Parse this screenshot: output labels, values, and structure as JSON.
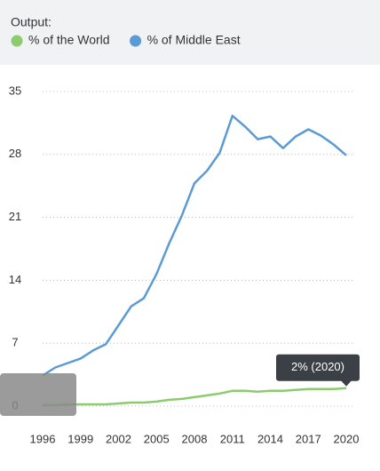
{
  "chart_data": {
    "type": "line",
    "title": "Output:",
    "x": [
      1996,
      1997,
      1998,
      1999,
      2000,
      2001,
      2002,
      2003,
      2004,
      2005,
      2006,
      2007,
      2008,
      2009,
      2010,
      2011,
      2012,
      2013,
      2014,
      2015,
      2016,
      2017,
      2018,
      2019,
      2020
    ],
    "series": [
      {
        "name": "% of the World",
        "color": "#8dcb6f",
        "values": [
          0.1,
          0.1,
          0.2,
          0.2,
          0.2,
          0.2,
          0.3,
          0.4,
          0.4,
          0.5,
          0.7,
          0.8,
          1.0,
          1.2,
          1.4,
          1.7,
          1.7,
          1.6,
          1.7,
          1.7,
          1.8,
          1.9,
          1.9,
          1.9,
          2.0
        ]
      },
      {
        "name": "% of Middle East",
        "color": "#5b9bd5",
        "values": [
          3.4,
          4.3,
          4.8,
          5.3,
          6.2,
          6.9,
          9.0,
          11.1,
          12.0,
          14.7,
          18.1,
          21.2,
          24.8,
          26.2,
          28.2,
          32.3,
          31.1,
          29.7,
          30.0,
          28.7,
          30.0,
          30.8,
          30.1,
          29.1,
          27.9
        ]
      }
    ],
    "annotation": "2% (2020)",
    "xlim": [
      1996,
      2020
    ],
    "xticks": [
      1996,
      1999,
      2002,
      2005,
      2008,
      2011,
      2014,
      2017,
      2020
    ],
    "ylim": [
      0,
      35
    ],
    "yticks": [
      0,
      7,
      14,
      21,
      28,
      35
    ],
    "grid": true
  }
}
